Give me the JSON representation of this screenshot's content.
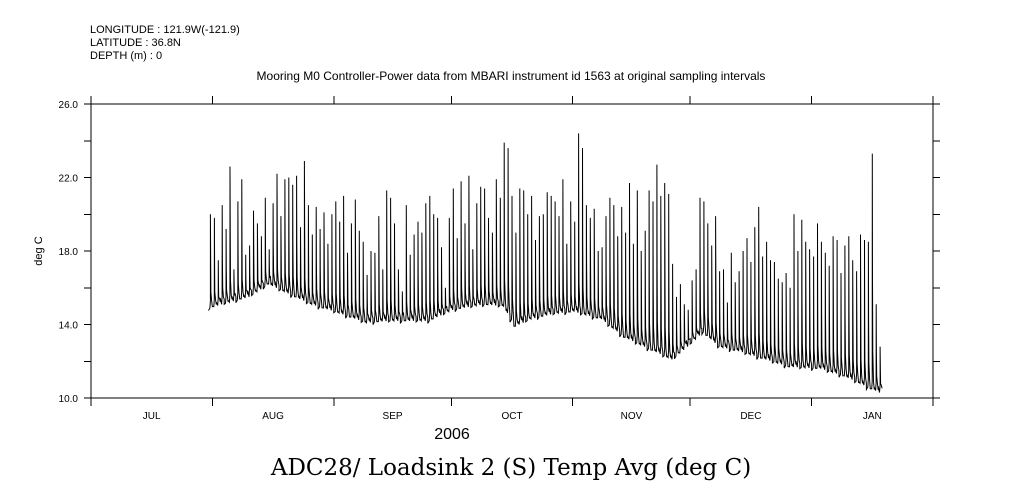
{
  "header": {
    "longitude": "LONGITUDE : 121.9W(-121.9)",
    "latitude": "LATITUDE : 36.8N",
    "depth": "DEPTH (m) : 0"
  },
  "chart_data": {
    "type": "line",
    "title": "Mooring M0 Controller-Power data from MBARI instrument id 1563 at original sampling intervals",
    "xlabel": "2006",
    "ylabel": "deg C",
    "bottom_title": "ADC28/ Loadsink 2 (S) Temp Avg (deg C)",
    "ylim": [
      10,
      26
    ],
    "y_ticks": [
      10,
      12,
      14,
      16,
      18,
      20,
      22,
      24,
      26
    ],
    "y_tick_labels": [
      "10.0",
      "14.0",
      "18.0",
      "22.0",
      "26.0"
    ],
    "x_range_days_from_jul1": [
      0,
      215
    ],
    "month_starts_days_from_jul1": [
      0,
      31,
      62,
      92,
      123,
      153,
      184,
      215
    ],
    "month_labels": [
      "JUL",
      "AUG",
      "SEP",
      "OCT",
      "NOV",
      "DEC",
      "JAN"
    ],
    "series_start_day_from_jul1": 30,
    "series_note": "daily cycle: baseline (interpolated) with daily peak",
    "baseline_anchors": [
      [
        0,
        15.0
      ],
      [
        3,
        15.2
      ],
      [
        10,
        15.6
      ],
      [
        15,
        16.3
      ],
      [
        20,
        15.8
      ],
      [
        26,
        15.2
      ],
      [
        32,
        14.8
      ],
      [
        40,
        14.2
      ],
      [
        46,
        14.3
      ],
      [
        56,
        14.3
      ],
      [
        62,
        14.9
      ],
      [
        70,
        15.2
      ],
      [
        75,
        15.1
      ],
      [
        78,
        14.0
      ],
      [
        82,
        14.4
      ],
      [
        88,
        14.7
      ],
      [
        93,
        14.8
      ],
      [
        100,
        14.4
      ],
      [
        106,
        13.4
      ],
      [
        112,
        12.8
      ],
      [
        118,
        12.2
      ],
      [
        122,
        12.9
      ],
      [
        126,
        13.7
      ],
      [
        130,
        12.9
      ],
      [
        136,
        12.6
      ],
      [
        142,
        12.2
      ],
      [
        148,
        11.8
      ],
      [
        156,
        11.7
      ],
      [
        162,
        11.3
      ],
      [
        167,
        10.8
      ],
      [
        171,
        10.4
      ]
    ],
    "daily_peaks": [
      20.0,
      19.8,
      17.5,
      20.5,
      19.2,
      22.6,
      17.0,
      20.7,
      21.9,
      17.8,
      18.3,
      20.2,
      19.5,
      18.8,
      20.9,
      18.1,
      20.6,
      22.2,
      19.9,
      21.9,
      22.0,
      21.6,
      22.1,
      19.3,
      22.9,
      20.5,
      18.9,
      20.4,
      19.2,
      20.1,
      18.4,
      20.0,
      20.7,
      19.6,
      21.0,
      17.9,
      19.5,
      20.8,
      19.1,
      18.5,
      16.7,
      18.0,
      17.9,
      19.9,
      17.0,
      21.3,
      20.9,
      19.5,
      17.0,
      15.8,
      20.5,
      17.8,
      18.9,
      19.6,
      19.0,
      20.6,
      21.0,
      20.0,
      19.8,
      18.2,
      16.0,
      19.8,
      21.4,
      18.7,
      21.8,
      19.5,
      22.1,
      18.1,
      20.6,
      21.5,
      21.4,
      19.8,
      19.0,
      21.9,
      20.9,
      23.9,
      23.6,
      21.0,
      19.0,
      21.4,
      21.3,
      20.0,
      21.0,
      18.6,
      19.9,
      20.0,
      21.2,
      21.0,
      20.7,
      19.9,
      21.9,
      18.4,
      20.7,
      19.6,
      24.4,
      23.6,
      20.5,
      19.8,
      20.3,
      18.0,
      18.2,
      19.9,
      20.9,
      20.5,
      18.8,
      20.4,
      19.0,
      21.7,
      18.4,
      21.3,
      18.0,
      19.1,
      21.3,
      20.7,
      22.7,
      21.0,
      21.7,
      21.1,
      17.3,
      15.5,
      16.2,
      15.1,
      14.8,
      16.4,
      17.0,
      20.9,
      20.7,
      19.5,
      18.3,
      19.9,
      16.9,
      17.0,
      15.2,
      17.9,
      16.3,
      16.9,
      18.0,
      18.7,
      17.4,
      19.3,
      20.4,
      17.7,
      18.5,
      17.5,
      17.4,
      16.5,
      16.3,
      16.8,
      16.0,
      20.0,
      18.0,
      19.7,
      18.5,
      18.1,
      17.7,
      19.5,
      18.5,
      17.9,
      17.2,
      18.8,
      18.6,
      16.8,
      18.3,
      18.8,
      17.5,
      16.9,
      18.9,
      18.6,
      18.5,
      23.3,
      15.1,
      12.8
    ]
  }
}
